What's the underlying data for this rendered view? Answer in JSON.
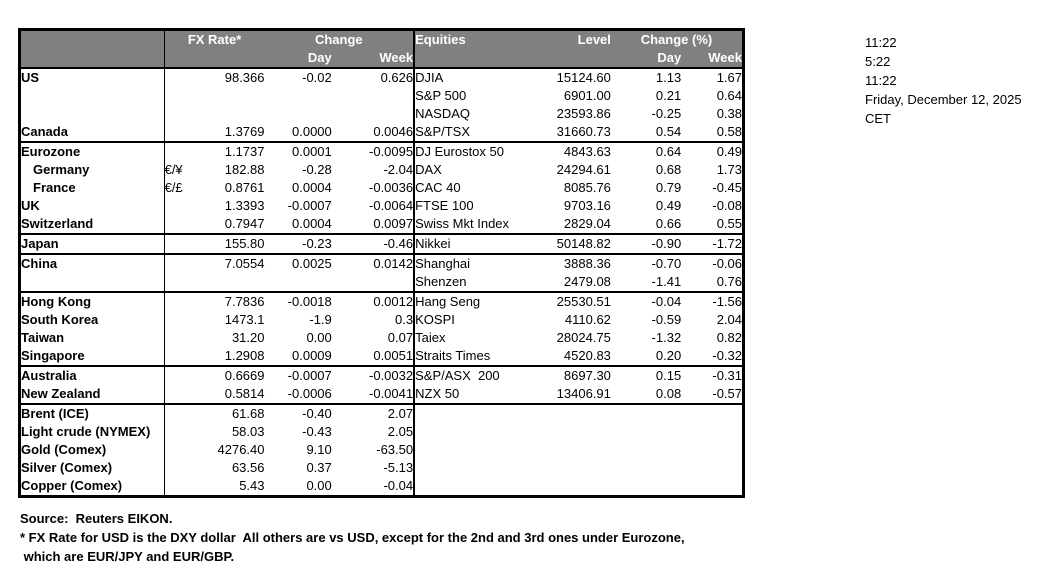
{
  "colors": {
    "header_bg": "#808080",
    "header_text": "#ffffff",
    "border": "#000000",
    "text": "#000000",
    "background": "#ffffff"
  },
  "table_header": {
    "fx_rate": "FX Rate*",
    "change": "Change",
    "day": "Day",
    "week": "Week",
    "equities": "Equities",
    "level": "Level",
    "change_pct": "Change (%)"
  },
  "rows": [
    {
      "name": "US",
      "sym": "",
      "fx": "98.366",
      "day": "-0.02",
      "week": "0.626",
      "eq": "DJIA",
      "level": "15124.60",
      "eq_day": "1.13",
      "eq_week": "1.67",
      "indent": false,
      "section_end": false
    },
    {
      "name": "",
      "sym": "",
      "fx": "",
      "day": "",
      "week": "",
      "eq": "S&P 500",
      "level": "6901.00",
      "eq_day": "0.21",
      "eq_week": "0.64",
      "indent": false,
      "section_end": false
    },
    {
      "name": "",
      "sym": "",
      "fx": "",
      "day": "",
      "week": "",
      "eq": "NASDAQ",
      "level": "23593.86",
      "eq_day": "-0.25",
      "eq_week": "0.38",
      "indent": false,
      "section_end": false
    },
    {
      "name": "Canada",
      "sym": "",
      "fx": "1.3769",
      "day": "0.0000",
      "week": "0.0046",
      "eq": "S&P/TSX",
      "level": "31660.73",
      "eq_day": "0.54",
      "eq_week": "0.58",
      "indent": false,
      "section_end": true
    },
    {
      "name": "Eurozone",
      "sym": "",
      "fx": "1.1737",
      "day": "0.0001",
      "week": "-0.0095",
      "eq": "DJ Eurostox 50",
      "level": "4843.63",
      "eq_day": "0.64",
      "eq_week": "0.49",
      "indent": false,
      "section_end": false
    },
    {
      "name": "Germany",
      "sym": "€/¥",
      "fx": "182.88",
      "day": "-0.28",
      "week": "-2.04",
      "eq": "DAX",
      "level": "24294.61",
      "eq_day": "0.68",
      "eq_week": "1.73",
      "indent": true,
      "section_end": false
    },
    {
      "name": "France",
      "sym": "€/£",
      "fx": "0.8761",
      "day": "0.0004",
      "week": "-0.0036",
      "eq": "CAC 40",
      "level": "8085.76",
      "eq_day": "0.79",
      "eq_week": "-0.45",
      "indent": true,
      "section_end": false
    },
    {
      "name": "UK",
      "sym": "",
      "fx": "1.3393",
      "day": "-0.0007",
      "week": "-0.0064",
      "eq": "FTSE 100",
      "level": "9703.16",
      "eq_day": "0.49",
      "eq_week": "-0.08",
      "indent": false,
      "section_end": false
    },
    {
      "name": "Switzerland",
      "sym": "",
      "fx": "0.7947",
      "day": "0.0004",
      "week": "0.0097",
      "eq": "Swiss Mkt Index",
      "level": "2829.04",
      "eq_day": "0.66",
      "eq_week": "0.55",
      "indent": false,
      "section_end": true
    },
    {
      "name": "Japan",
      "sym": "",
      "fx": "155.80",
      "day": "-0.23",
      "week": "-0.46",
      "eq": "Nikkei",
      "level": "50148.82",
      "eq_day": "-0.90",
      "eq_week": "-1.72",
      "indent": false,
      "section_end": true
    },
    {
      "name": "China",
      "sym": "",
      "fx": "7.0554",
      "day": "0.0025",
      "week": "0.0142",
      "eq": "Shanghai",
      "level": "3888.36",
      "eq_day": "-0.70",
      "eq_week": "-0.06",
      "indent": false,
      "section_end": false
    },
    {
      "name": "",
      "sym": "",
      "fx": "",
      "day": "",
      "week": "",
      "eq": "Shenzen",
      "level": "2479.08",
      "eq_day": "-1.41",
      "eq_week": "0.76",
      "indent": false,
      "section_end": true
    },
    {
      "name": "Hong Kong",
      "sym": "",
      "fx": "7.7836",
      "day": "-0.0018",
      "week": "0.0012",
      "eq": "Hang Seng",
      "level": "25530.51",
      "eq_day": "-0.04",
      "eq_week": "-1.56",
      "indent": false,
      "section_end": false
    },
    {
      "name": "South Korea",
      "sym": "",
      "fx": "1473.1",
      "day": "-1.9",
      "week": "0.3",
      "eq": "KOSPI",
      "level": "4110.62",
      "eq_day": "-0.59",
      "eq_week": "2.04",
      "indent": false,
      "section_end": false
    },
    {
      "name": "Taiwan",
      "sym": "",
      "fx": "31.20",
      "day": "0.00",
      "week": "0.07",
      "eq": "Taiex",
      "level": "28024.75",
      "eq_day": "-1.32",
      "eq_week": "0.82",
      "indent": false,
      "section_end": false
    },
    {
      "name": "Singapore",
      "sym": "",
      "fx": "1.2908",
      "day": "0.0009",
      "week": "0.0051",
      "eq": "Straits Times",
      "level": "4520.83",
      "eq_day": "0.20",
      "eq_week": "-0.32",
      "indent": false,
      "section_end": true
    },
    {
      "name": "Australia",
      "sym": "",
      "fx": "0.6669",
      "day": "-0.0007",
      "week": "-0.0032",
      "eq": "S&P/ASX  200",
      "level": "8697.30",
      "eq_day": "0.15",
      "eq_week": "-0.31",
      "indent": false,
      "section_end": false
    },
    {
      "name": "New Zealand",
      "sym": "",
      "fx": "0.5814",
      "day": "-0.0006",
      "week": "-0.0041",
      "eq": "NZX 50",
      "level": "13406.91",
      "eq_day": "0.08",
      "eq_week": "-0.57",
      "indent": false,
      "section_end": true
    },
    {
      "name": "Brent (ICE)",
      "sym": "",
      "fx": "61.68",
      "day": "-0.40",
      "week": "2.07",
      "eq": "",
      "level": "",
      "eq_day": "",
      "eq_week": "",
      "indent": false,
      "section_end": false
    },
    {
      "name": "Light crude (NYMEX)",
      "sym": "",
      "fx": "58.03",
      "day": "-0.43",
      "week": "2.05",
      "eq": "",
      "level": "",
      "eq_day": "",
      "eq_week": "",
      "indent": false,
      "section_end": false
    },
    {
      "name": "Gold (Comex)",
      "sym": "",
      "fx": "4276.40",
      "day": "9.10",
      "week": "-63.50",
      "eq": "",
      "level": "",
      "eq_day": "",
      "eq_week": "",
      "indent": false,
      "section_end": false
    },
    {
      "name": "Silver (Comex)",
      "sym": "",
      "fx": "63.56",
      "day": "0.37",
      "week": "-5.13",
      "eq": "",
      "level": "",
      "eq_day": "",
      "eq_week": "",
      "indent": false,
      "section_end": false
    },
    {
      "name": "Copper (Comex)",
      "sym": "",
      "fx": "5.43",
      "day": "0.00",
      "week": "-0.04",
      "eq": "",
      "level": "",
      "eq_day": "",
      "eq_week": "",
      "indent": false,
      "section_end": false
    }
  ],
  "timestamps": {
    "lines": [
      "11:22",
      "5:22",
      "11:22",
      "Friday, December 12, 2025",
      "CET"
    ]
  },
  "footnotes": {
    "source": "Source:  Reuters EIKON.",
    "note_line1": "* FX Rate for USD is the DXY dollar  All others are vs USD, except for the 2nd and 3rd ones under Eurozone,",
    "note_line2": " which are EUR/JPY and EUR/GBP."
  }
}
